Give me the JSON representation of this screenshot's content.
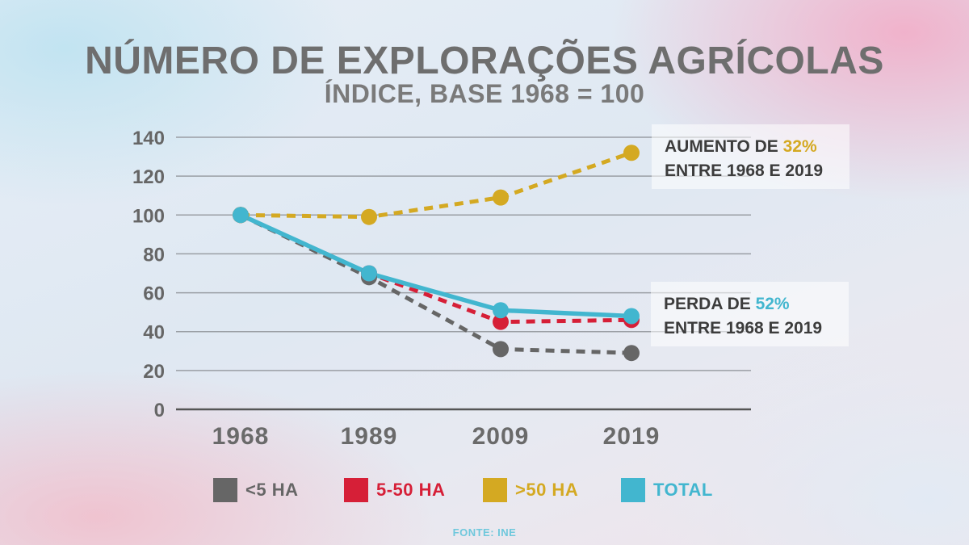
{
  "chart_data": {
    "type": "line",
    "title": "NÚMERO DE EXPLORAÇÕES AGRÍCOLAS",
    "subtitle": "ÍNDICE, BASE 1968 = 100",
    "categories": [
      "1968",
      "1989",
      "2009",
      "2019"
    ],
    "ylim": [
      0,
      140
    ],
    "yticks": [
      0,
      20,
      40,
      60,
      80,
      100,
      120,
      140
    ],
    "grid": true,
    "legend_position": "bottom",
    "series": [
      {
        "name": "<5 HA",
        "values": [
          100,
          68,
          31,
          29
        ],
        "color": "#666666",
        "dashed": true
      },
      {
        "name": "5-50 HA",
        "values": [
          100,
          70,
          45,
          46
        ],
        "color": "#d61f37",
        "dashed": true
      },
      {
        "name": ">50 HA",
        "values": [
          100,
          99,
          109,
          132
        ],
        "color": "#d4a922",
        "dashed": true
      },
      {
        "name": "TOTAL",
        "values": [
          100,
          70,
          51,
          48
        ],
        "color": "#42b6cf",
        "dashed": false
      }
    ],
    "annotations": [
      {
        "prefix": "AUMENTO DE ",
        "highlight": "32%",
        "line2": "ENTRE 1968 E 2019",
        "color": "#d4a922"
      },
      {
        "prefix": "PERDA DE ",
        "highlight": "52%",
        "line2": "ENTRE 1968 E 2019",
        "color": "#42b6cf"
      }
    ],
    "source": "FONTE: INE"
  }
}
